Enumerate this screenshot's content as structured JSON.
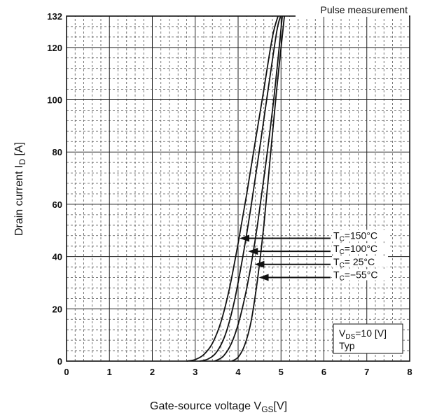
{
  "chart_data": {
    "type": "line",
    "title": "Pulse measurement",
    "xlabel": {
      "main": "Gate-source voltage  V",
      "sub": "GS",
      "unit": "[V]"
    },
    "ylabel": {
      "main": "Drain current  I",
      "sub": "D",
      "unit": " [A]"
    },
    "xlim": [
      0,
      8
    ],
    "ylim": [
      0,
      132
    ],
    "x_ticks": [
      "0",
      "1",
      "2",
      "3",
      "4",
      "5",
      "6",
      "7",
      "8"
    ],
    "y_ticks": [
      {
        "value": 0,
        "label": "0"
      },
      {
        "value": 20,
        "label": "20"
      },
      {
        "value": 40,
        "label": "40"
      },
      {
        "value": 60,
        "label": "60"
      },
      {
        "value": 80,
        "label": "80"
      },
      {
        "value": 100,
        "label": "100"
      },
      {
        "value": 120,
        "label": "120"
      },
      {
        "value": 132,
        "label": "132"
      }
    ],
    "grid": true,
    "series": [
      {
        "name": "Tc=150°C",
        "label": {
          "pre": "T",
          "sub": "C",
          "post": "=150°C"
        },
        "arrow_at": [
          4.0,
          47
        ],
        "x": [
          2.8,
          3.0,
          3.2,
          3.4,
          3.6,
          3.8,
          4.0,
          4.2,
          4.4,
          4.6,
          4.8,
          4.93
        ],
        "y": [
          0,
          0.6,
          2.5,
          6.8,
          15,
          28,
          45,
          64,
          84,
          104,
          124,
          132
        ]
      },
      {
        "name": "Tc=100°C",
        "label": {
          "pre": "T",
          "sub": "C",
          "post": "=100°C"
        },
        "arrow_at": [
          4.2,
          42
        ],
        "x": [
          3.1,
          3.3,
          3.5,
          3.7,
          3.9,
          4.1,
          4.3,
          4.5,
          4.7,
          4.9,
          4.99
        ],
        "y": [
          0,
          0.8,
          3.5,
          10,
          22,
          39,
          59,
          81,
          104,
          126,
          132
        ]
      },
      {
        "name": "Tc= 25°C",
        "label": {
          "pre": "T",
          "sub": "C",
          "post": "= 25°C"
        },
        "arrow_at": [
          4.35,
          37
        ],
        "x": [
          3.45,
          3.65,
          3.85,
          4.05,
          4.25,
          4.45,
          4.65,
          4.85,
          5.03
        ],
        "y": [
          0,
          1.8,
          7,
          17,
          32,
          52,
          76,
          103,
          132
        ]
      },
      {
        "name": "Tc=−55°C",
        "label": {
          "pre": "T",
          "sub": "C",
          "post": "=−55°C"
        },
        "arrow_at": [
          4.45,
          32
        ],
        "x": [
          3.85,
          4.0,
          4.15,
          4.3,
          4.45,
          4.6,
          4.75,
          4.9,
          5.08
        ],
        "y": [
          0,
          1.5,
          6,
          15,
          31,
          52,
          78,
          104,
          132
        ]
      }
    ],
    "legend_box": {
      "line1": {
        "pre": "V",
        "sub": "DS",
        "post": "=10 [V]"
      },
      "line2": "Typ"
    }
  }
}
